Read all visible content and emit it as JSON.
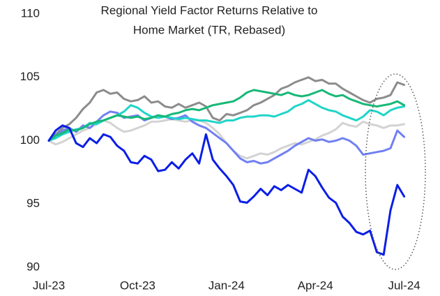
{
  "chart_data": {
    "type": "line",
    "title": [
      "Regional Yield Factor Returns Relative to",
      "Home Market (TR, Rebased)"
    ],
    "categories": [
      "Jul-23",
      null,
      null,
      null,
      null,
      null,
      null,
      null,
      null,
      null,
      null,
      null,
      null,
      "Oct-23",
      null,
      null,
      null,
      null,
      null,
      null,
      null,
      null,
      null,
      null,
      null,
      null,
      "Jan-24",
      null,
      null,
      null,
      null,
      null,
      null,
      null,
      null,
      null,
      null,
      null,
      null,
      "Apr-24",
      null,
      null,
      null,
      null,
      null,
      null,
      null,
      null,
      null,
      null,
      null,
      null,
      "Jul-24"
    ],
    "ylim": [
      90,
      110
    ],
    "yticks": [
      90,
      95,
      100,
      105,
      110
    ],
    "grid": false,
    "series": [
      {
        "color": "#d3d3d3",
        "values": [
          100,
          99.7,
          99.9,
          100.2,
          100.5,
          100.8,
          101,
          101.3,
          101.6,
          101.4,
          101,
          100.7,
          100.8,
          101,
          101.2,
          101.5,
          101.5,
          101.6,
          101.7,
          101.6,
          101.5,
          101.6,
          101.6,
          101.4,
          101,
          100.5,
          99.8,
          99.2,
          98.8,
          98.6,
          98.8,
          99,
          98.9,
          99.1,
          99.4,
          99.6,
          99.8,
          99.7,
          99.9,
          100.1,
          100.4,
          100.6,
          100.9,
          101.4,
          101.2,
          101.1,
          101.5,
          101.3,
          101.2,
          101,
          101.2,
          101.2,
          101.3
        ]
      },
      {
        "color": "#8c8c8c",
        "values": [
          100,
          100.5,
          101,
          101.3,
          101.8,
          102.5,
          103,
          103.8,
          104,
          103.7,
          103.8,
          103.3,
          103.1,
          103.2,
          103.5,
          103,
          103.1,
          102.7,
          102.6,
          102.9,
          102.6,
          102.8,
          103,
          102.7,
          101.8,
          101.6,
          102.1,
          102,
          102.2,
          102.4,
          102.8,
          103,
          103.3,
          103.6,
          104.1,
          104.3,
          104.6,
          104.8,
          105,
          104.7,
          104.8,
          104.5,
          104.5,
          104.1,
          103.8,
          103.5,
          103.2,
          103,
          103.3,
          103.4,
          103.6,
          104.6,
          104.4
        ]
      },
      {
        "color": "#7080f2",
        "values": [
          100,
          100.4,
          100.8,
          101,
          100.7,
          101.2,
          101,
          101.5,
          102,
          102.3,
          102.2,
          101.8,
          101.9,
          102,
          101.6,
          101.8,
          102,
          101.9,
          101.7,
          101.8,
          102,
          101.5,
          101.2,
          101,
          100.6,
          100.2,
          99.8,
          99.2,
          98.6,
          98.3,
          98.4,
          98.2,
          98.3,
          98.6,
          98.9,
          99.2,
          99.6,
          99.9,
          100.2,
          100,
          100.1,
          99.9,
          100,
          100.2,
          100,
          99.6,
          98.9,
          99,
          99.1,
          99.2,
          99.4,
          100.8,
          100.3
        ]
      },
      {
        "color": "#1fd5c8",
        "values": [
          100,
          100.2,
          100.5,
          100.7,
          100.9,
          101,
          101.4,
          101.3,
          101.6,
          101.8,
          102,
          102.3,
          102.8,
          102.6,
          102.2,
          101.9,
          101.8,
          101.9,
          101.8,
          101.7,
          101.8,
          101.7,
          101.6,
          101.6,
          101.5,
          101.4,
          101.6,
          101.6,
          101.8,
          101.9,
          101.9,
          102,
          102,
          101.9,
          102.1,
          102.3,
          102.7,
          102.9,
          103.2,
          102.9,
          102.6,
          102.4,
          102.3,
          102,
          101.8,
          101.6,
          101.9,
          102.4,
          102.3,
          102,
          102.4,
          102.6,
          102.7
        ]
      },
      {
        "color": "#17b877",
        "values": [
          100,
          100.4,
          100.6,
          100.9,
          100.8,
          101,
          101.3,
          101.5,
          101.6,
          101.8,
          102,
          101.9,
          101.8,
          101.9,
          101.7,
          101.8,
          102,
          101.9,
          102.1,
          102.2,
          102.4,
          102.5,
          102.4,
          102.6,
          102.8,
          102.9,
          103,
          103.1,
          103.4,
          103.8,
          104,
          103.9,
          103.8,
          103.7,
          103.6,
          103.8,
          103.6,
          103.5,
          103.6,
          103.8,
          104,
          103.7,
          103.5,
          103.6,
          103.3,
          103.1,
          102.9,
          102.8,
          102.7,
          102.8,
          102.9,
          103.1,
          102.8
        ]
      },
      {
        "color": "#0a1ee6",
        "values": [
          100,
          100.8,
          101.2,
          101,
          99.8,
          99.5,
          100.2,
          99.8,
          100.5,
          100.3,
          99.6,
          99.2,
          98.3,
          98.2,
          98.8,
          98.5,
          97.6,
          97.7,
          98.3,
          97.8,
          98.5,
          99,
          98.2,
          100.5,
          98.5,
          97.8,
          97.2,
          96.5,
          95.2,
          95.1,
          95.6,
          96.2,
          95.7,
          96.4,
          96.1,
          96.5,
          96.2,
          95.9,
          97.7,
          97.2,
          96.3,
          95.5,
          95.1,
          94,
          93.5,
          92.8,
          92.6,
          92.9,
          91.2,
          91,
          94.5,
          96.5,
          95.6
        ]
      }
    ]
  }
}
